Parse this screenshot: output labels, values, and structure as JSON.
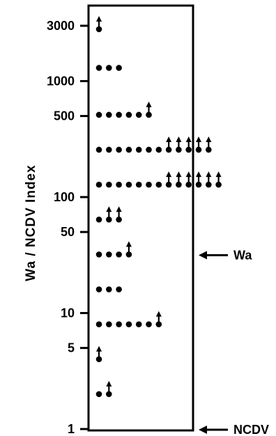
{
  "chart_data": {
    "type": "scatter",
    "ylabel": "Wa / NCDV  Index",
    "y_scale": "log",
    "ylim": [
      1,
      4000
    ],
    "y_ticks": [
      {
        "value": 3000,
        "label": "3000"
      },
      {
        "value": 1000,
        "label": "1000"
      },
      {
        "value": 500,
        "label": "500"
      },
      {
        "value": 100,
        "label": "100"
      },
      {
        "value": 50,
        "label": "50"
      },
      {
        "value": 10,
        "label": "10"
      },
      {
        "value": 5,
        "label": "5"
      },
      {
        "value": 1,
        "label": "1"
      }
    ],
    "reference_markers": [
      {
        "label": "Wa",
        "value": 32
      },
      {
        "label": "NCDV",
        "value": 1
      }
    ],
    "rows": [
      {
        "value": 2800,
        "points": 0,
        "greater_than": 1
      },
      {
        "value": 1300,
        "points": 3,
        "greater_than": 0
      },
      {
        "value": 512,
        "points": 5,
        "greater_than": 1
      },
      {
        "value": 256,
        "points": 7,
        "greater_than": 5
      },
      {
        "value": 128,
        "points": 7,
        "greater_than": 6
      },
      {
        "value": 64,
        "points": 1,
        "greater_than": 2
      },
      {
        "value": 32,
        "points": 3,
        "greater_than": 1
      },
      {
        "value": 16,
        "points": 3,
        "greater_than": 0
      },
      {
        "value": 8,
        "points": 6,
        "greater_than": 1
      },
      {
        "value": 4,
        "points": 0,
        "greater_than": 1
      },
      {
        "value": 2,
        "points": 1,
        "greater_than": 1
      }
    ],
    "grid": false,
    "legend": "none"
  },
  "colors": {
    "ink": "#000000",
    "background": "#ffffff"
  }
}
